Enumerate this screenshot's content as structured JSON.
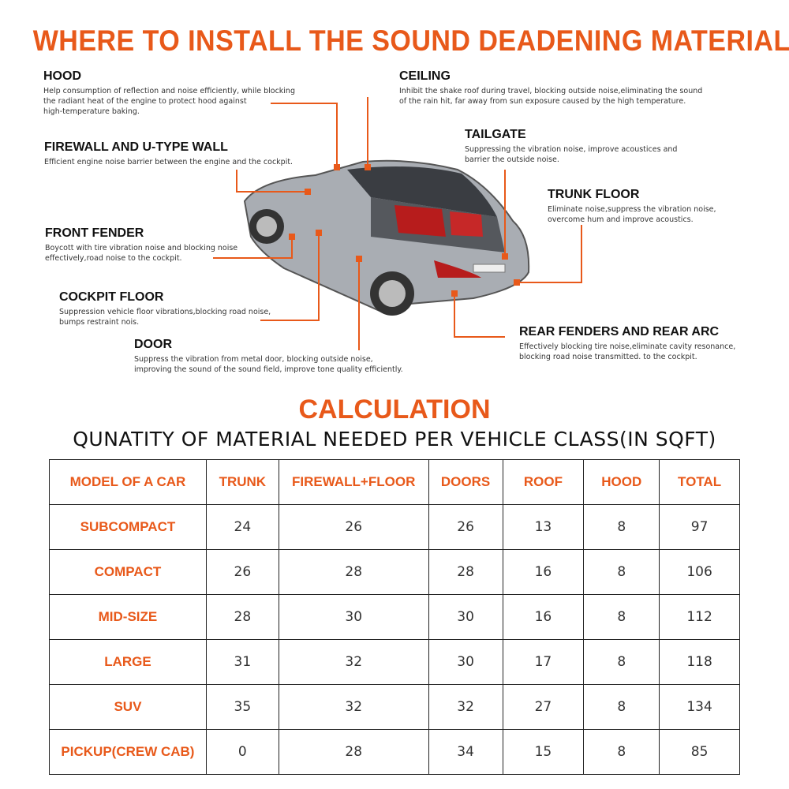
{
  "title": "WHERE TO INSTALL THE SOUND DEADENING MATERIAL",
  "accent": "#e8591a",
  "labels": [
    {
      "key": "hood",
      "title": "HOOD",
      "text": "Help consumption of reflection and noise efficiently, while blocking\nthe radiant heat of the engine to protect hood against\nhigh-temperature baking."
    },
    {
      "key": "ceiling",
      "title": "CEILING",
      "text": "Inhibit the shake roof during travel, blocking outside noise,eliminating the sound\nof the rain hit, far away from sun exposure caused by the high temperature."
    },
    {
      "key": "firewall",
      "title": "FIREWALL AND U-TYPE WALL",
      "text": "Efficient engine noise barrier between the engine and the cockpit."
    },
    {
      "key": "tailgate",
      "title": "TAILGATE",
      "text": "Suppressing the vibration noise, improve acoustices and\nbarrier the outside noise."
    },
    {
      "key": "trunk-floor",
      "title": "TRUNK FLOOR",
      "text": "Eliminate noise,suppress the vibration noise,\novercome hum and improve acoustics."
    },
    {
      "key": "front-fender",
      "title": "FRONT FENDER",
      "text": "Boycott with tire vibration noise and blocking noise\neffectively,road noise to the cockpit."
    },
    {
      "key": "cockpit-floor",
      "title": "COCKPIT FLOOR",
      "text": "Suppression vehicle floor vibrations,blocking road noise,\nbumps restraint nois."
    },
    {
      "key": "door",
      "title": "DOOR",
      "text": "Suppress the vibration from metal door, blocking outside noise,\nimproving the sound of the sound field, improve tone quality efficiently."
    },
    {
      "key": "rear-fenders",
      "title": "REAR FENDERS AND REAR ARC",
      "text": "Effectively blocking tire noise,eliminate cavity resonance,\nblocking road noise transmitted. to the cockpit."
    }
  ],
  "calc_title": "CALCULATION",
  "calc_subtitle": "QUNATITY OF MATERIAL NEEDED PER VEHICLE CLASS(IN SQFT)",
  "table": {
    "headers": [
      "MODEL OF A CAR",
      "TRUNK",
      "FIREWALL+FLOOR",
      "DOORS",
      "ROOF",
      "HOOD",
      "TOTAL"
    ],
    "rows": [
      [
        "SUBCOMPACT",
        "24",
        "26",
        "26",
        "13",
        "8",
        "97"
      ],
      [
        "COMPACT",
        "26",
        "28",
        "28",
        "16",
        "8",
        "106"
      ],
      [
        "MID-SIZE",
        "28",
        "30",
        "30",
        "16",
        "8",
        "112"
      ],
      [
        "LARGE",
        "31",
        "32",
        "30",
        "17",
        "8",
        "118"
      ],
      [
        "SUV",
        "35",
        "32",
        "32",
        "27",
        "8",
        "134"
      ],
      [
        "PICKUP(CREW CAB)",
        "0",
        "28",
        "34",
        "15",
        "8",
        "85"
      ]
    ]
  }
}
